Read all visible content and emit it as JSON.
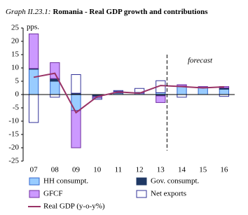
{
  "chart_data": {
    "type": "bar",
    "title_label": "Graph II.23.1:",
    "title": "Romania - Real GDP growth and contributions",
    "y_unit": "pps.",
    "annotation": "forecast",
    "categories": [
      "07",
      "08",
      "09",
      "10",
      "11",
      "12",
      "13",
      "14",
      "15",
      "16"
    ],
    "series": [
      {
        "name": "HH consumpt.",
        "color": "#99ccff",
        "values": [
          9.5,
          5,
          -6,
          -0.3,
          0.5,
          0.5,
          0.7,
          3,
          2.5,
          2
        ]
      },
      {
        "name": "Gov. consumpt.",
        "color": "#1f3864",
        "values": [
          0.3,
          1,
          0.5,
          -0.5,
          0.2,
          0,
          -0.5,
          0.2,
          0.2,
          0.5
        ]
      },
      {
        "name": "GFCF",
        "color": "#cc99ff",
        "values": [
          13,
          6,
          -14,
          -0.5,
          0.5,
          0.3,
          -2.5,
          0.5,
          0.3,
          0.5
        ]
      },
      {
        "name": "Net exports",
        "color": "#ffffff",
        "values": [
          -10.5,
          -1,
          7,
          -0.5,
          0.3,
          1.5,
          4.5,
          -1,
          0,
          -0.7
        ]
      },
      {
        "name": "Real GDP (y-o-y%)",
        "color": "#993366",
        "type": "line",
        "values": [
          6.5,
          8,
          -6.8,
          -0.8,
          1,
          0.5,
          3.4,
          3,
          2.5,
          2.9
        ]
      }
    ],
    "ylim": [
      -25,
      25
    ],
    "yticks": [
      -25,
      -20,
      -15,
      -10,
      -5,
      0,
      5,
      10,
      15,
      20,
      25
    ]
  }
}
